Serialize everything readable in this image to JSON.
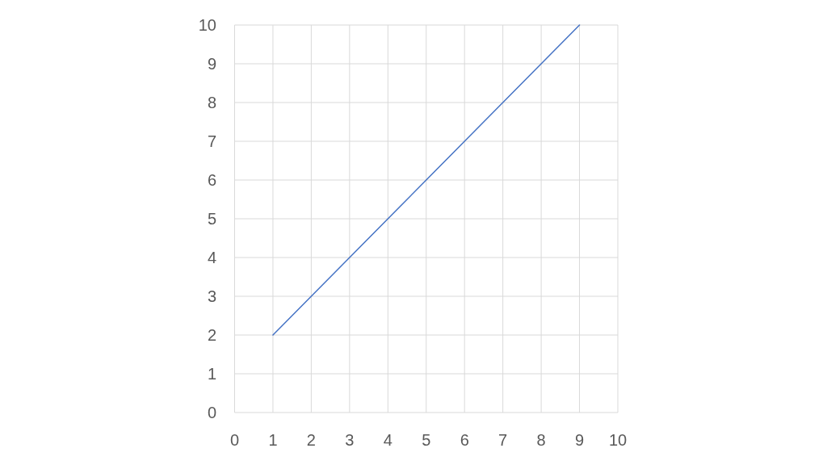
{
  "chart_data": {
    "type": "line",
    "x": [
      1,
      2,
      3,
      4,
      5,
      6,
      7,
      8,
      9
    ],
    "series": [
      {
        "color": "#4472c4",
        "values": [
          2,
          3,
          4,
          5,
          6,
          7,
          8,
          9,
          10
        ]
      }
    ],
    "xlim": [
      0,
      10
    ],
    "xticks": [
      0,
      1,
      2,
      3,
      4,
      5,
      6,
      7,
      8,
      9,
      10
    ],
    "ylim": [
      0,
      10
    ],
    "yticks": [
      0,
      1,
      2,
      3,
      4,
      5,
      6,
      7,
      8,
      9,
      10
    ],
    "grid": true,
    "marker": "none",
    "line_style": "solid"
  }
}
